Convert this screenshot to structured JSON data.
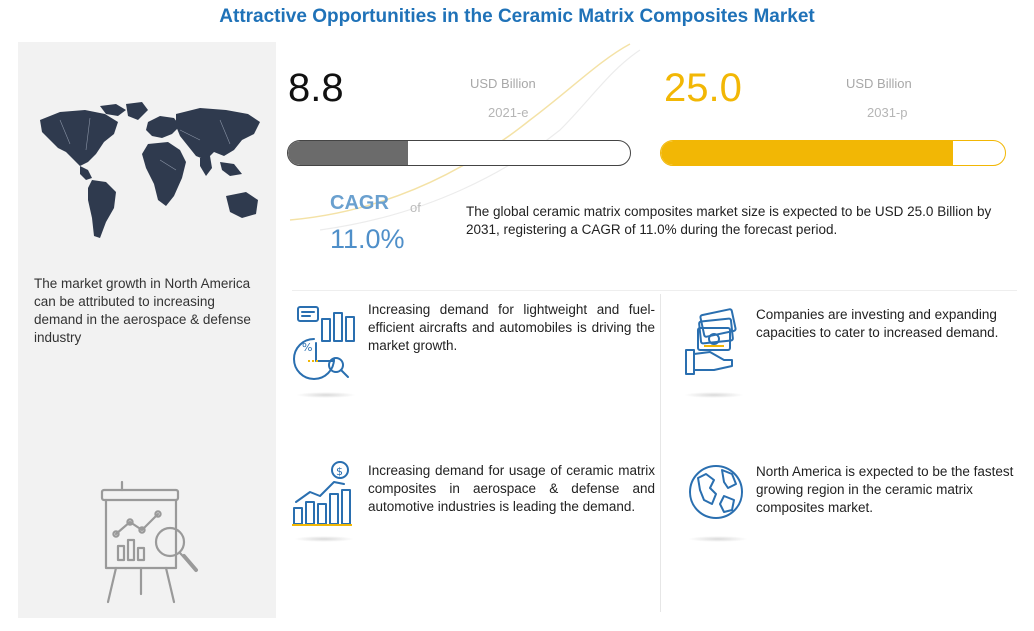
{
  "title": "Attractive Opportunities in the Ceramic Matrix Composites Market",
  "market_2021": {
    "value": "8.8",
    "unit": "USD Billion",
    "year": "2021-e",
    "bar_fill_fraction": 0.35
  },
  "market_2031": {
    "value": "25.0",
    "unit": "USD Billion",
    "year": "2031-p",
    "bar_fill_fraction": 0.85
  },
  "cagr": {
    "label": "CAGR",
    "of": "of",
    "value": "11.0%"
  },
  "summary": "The global ceramic matrix composites market size is expected to be USD 25.0 Billion by 2031, registering a CAGR of 11.0% during the forecast period.",
  "left_text": "The market growth in North America can be attributed to increasing demand in the aerospace & defense industry",
  "cards": [
    {
      "text": "Increasing demand for lightweight and fuel-efficient aircrafts and automobiles is driving the market growth.",
      "icon": "analytics-icon"
    },
    {
      "text": "Companies are investing and expanding capacities to cater to increased demand.",
      "icon": "money-hand-icon"
    },
    {
      "text": "Increasing demand for usage of ceramic matrix composites in aerospace & defense and automotive industries is leading the demand.",
      "icon": "growth-chart-icon"
    },
    {
      "text": "North America is expected to be the fastest growing region in the ceramic matrix composites market.",
      "icon": "globe-icon"
    }
  ],
  "colors": {
    "title": "#1f72b8",
    "accent_yellow": "#f2b705",
    "bar_grey": "#6b6b6b",
    "cagr_blue": "#4f8fc9",
    "panel": "#f2f2f2"
  }
}
